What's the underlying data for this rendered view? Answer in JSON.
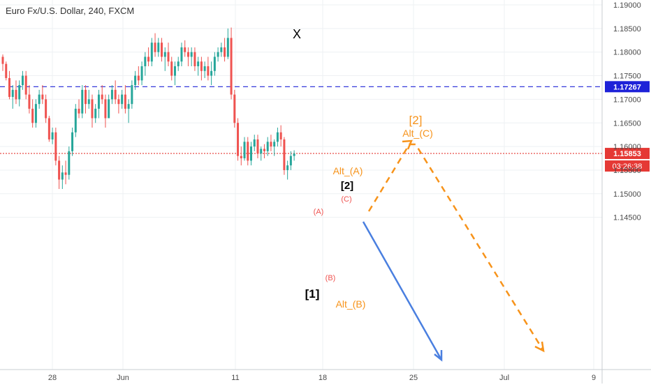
{
  "header": {
    "title": "Euro Fx/U.S. Dollar, 240, FXCM"
  },
  "colors": {
    "up": "#26a69a",
    "down": "#ef5350",
    "orange": "#f7931a",
    "blue_level": "#1e22d8",
    "red_dotted": "#e53935",
    "arrow_blue": "#4a7fe0",
    "grid": "#eef0f3",
    "axis_text": "#4a4a4a"
  },
  "chart_data": {
    "type": "candlestick",
    "symbol": "Euro Fx/U.S. Dollar",
    "interval": "240",
    "source": "FXCM",
    "ylim": [
      1.144,
      1.191
    ],
    "y_ticks": [
      "1.14500",
      "1.15000",
      "1.15500",
      "1.16000",
      "1.16500",
      "1.17000",
      "1.17500",
      "1.18000",
      "1.18500",
      "1.19000"
    ],
    "x_ticks": [
      "28",
      "Jun",
      "11",
      "18",
      "25",
      "Jul",
      "9"
    ],
    "grid": true,
    "horizontal_levels": [
      {
        "price": 1.17267,
        "label": "1.17267",
        "style": "dashed",
        "color": "#1e22d8"
      },
      {
        "price": 1.15853,
        "label": "1.15853",
        "style": "dotted",
        "color": "#e53935"
      }
    ],
    "countdown": "03:26:38",
    "annotations": [
      {
        "text": "X",
        "color": "#000000"
      },
      {
        "text": "[1]",
        "color": "#000000"
      },
      {
        "text": "[2]",
        "color": "#000000"
      },
      {
        "text": "(A)",
        "color": "#ef5350"
      },
      {
        "text": "(B)",
        "color": "#ef5350"
      },
      {
        "text": "(C)",
        "color": "#ef5350"
      },
      {
        "text": "Alt_(A)",
        "color": "#f7931a"
      },
      {
        "text": "Alt_(B)",
        "color": "#f7931a"
      },
      {
        "text": "[2]",
        "color": "#f7931a"
      },
      {
        "text": "Alt_(C)",
        "color": "#f7931a"
      }
    ],
    "candles": [
      [
        1.179,
        1.1795,
        1.176,
        1.1775
      ],
      [
        1.1775,
        1.178,
        1.174,
        1.1745
      ],
      [
        1.1745,
        1.176,
        1.17,
        1.1705
      ],
      [
        1.1705,
        1.173,
        1.168,
        1.172
      ],
      [
        1.172,
        1.174,
        1.169,
        1.17
      ],
      [
        1.17,
        1.174,
        1.1685,
        1.173
      ],
      [
        1.173,
        1.176,
        1.172,
        1.175
      ],
      [
        1.175,
        1.176,
        1.17,
        1.171
      ],
      [
        1.171,
        1.173,
        1.167,
        1.168
      ],
      [
        1.168,
        1.17,
        1.164,
        1.165
      ],
      [
        1.165,
        1.17,
        1.164,
        1.169
      ],
      [
        1.169,
        1.172,
        1.168,
        1.171
      ],
      [
        1.171,
        1.173,
        1.169,
        1.17
      ],
      [
        1.17,
        1.171,
        1.165,
        1.166
      ],
      [
        1.166,
        1.1665,
        1.161,
        1.1615
      ],
      [
        1.1615,
        1.164,
        1.1605,
        1.163
      ],
      [
        1.163,
        1.164,
        1.156,
        1.157
      ],
      [
        1.157,
        1.158,
        1.151,
        1.153
      ],
      [
        1.153,
        1.156,
        1.151,
        1.1545
      ],
      [
        1.1545,
        1.157,
        1.152,
        1.154
      ],
      [
        1.154,
        1.16,
        1.153,
        1.159
      ],
      [
        1.159,
        1.164,
        1.158,
        1.163
      ],
      [
        1.163,
        1.169,
        1.162,
        1.168
      ],
      [
        1.168,
        1.17,
        1.166,
        1.167
      ],
      [
        1.167,
        1.173,
        1.166,
        1.172
      ],
      [
        1.172,
        1.173,
        1.167,
        1.169
      ],
      [
        1.169,
        1.172,
        1.168,
        1.17
      ],
      [
        1.17,
        1.171,
        1.164,
        1.166
      ],
      [
        1.166,
        1.169,
        1.165,
        1.168
      ],
      [
        1.168,
        1.172,
        1.166,
        1.171
      ],
      [
        1.171,
        1.173,
        1.169,
        1.17
      ],
      [
        1.17,
        1.171,
        1.164,
        1.166
      ],
      [
        1.166,
        1.171,
        1.166,
        1.17
      ],
      [
        1.17,
        1.173,
        1.169,
        1.172
      ],
      [
        1.172,
        1.174,
        1.169,
        1.17
      ],
      [
        1.17,
        1.171,
        1.167,
        1.169
      ],
      [
        1.169,
        1.172,
        1.168,
        1.171
      ],
      [
        1.171,
        1.173,
        1.167,
        1.168
      ],
      [
        1.168,
        1.17,
        1.165,
        1.169
      ],
      [
        1.169,
        1.174,
        1.168,
        1.173
      ],
      [
        1.173,
        1.176,
        1.172,
        1.175
      ],
      [
        1.175,
        1.177,
        1.173,
        1.174
      ],
      [
        1.174,
        1.178,
        1.173,
        1.177
      ],
      [
        1.177,
        1.18,
        1.175,
        1.179
      ],
      [
        1.179,
        1.181,
        1.177,
        1.178
      ],
      [
        1.178,
        1.183,
        1.177,
        1.182
      ],
      [
        1.182,
        1.184,
        1.179,
        1.18
      ],
      [
        1.18,
        1.183,
        1.179,
        1.182
      ],
      [
        1.182,
        1.183,
        1.178,
        1.179
      ],
      [
        1.179,
        1.181,
        1.176,
        1.18
      ],
      [
        1.18,
        1.182,
        1.177,
        1.178
      ],
      [
        1.178,
        1.179,
        1.174,
        1.175
      ],
      [
        1.175,
        1.178,
        1.173,
        1.177
      ],
      [
        1.177,
        1.179,
        1.176,
        1.178
      ],
      [
        1.178,
        1.182,
        1.177,
        1.181
      ],
      [
        1.181,
        1.1825,
        1.179,
        1.18
      ],
      [
        1.18,
        1.181,
        1.177,
        1.179
      ],
      [
        1.179,
        1.181,
        1.177,
        1.18
      ],
      [
        1.18,
        1.181,
        1.176,
        1.177
      ],
      [
        1.177,
        1.179,
        1.175,
        1.178
      ],
      [
        1.178,
        1.179,
        1.174,
        1.176
      ],
      [
        1.176,
        1.178,
        1.1745,
        1.177
      ],
      [
        1.177,
        1.179,
        1.174,
        1.175
      ],
      [
        1.175,
        1.178,
        1.173,
        1.176
      ],
      [
        1.176,
        1.18,
        1.175,
        1.179
      ],
      [
        1.179,
        1.181,
        1.178,
        1.18
      ],
      [
        1.18,
        1.182,
        1.179,
        1.181
      ],
      [
        1.181,
        1.183,
        1.178,
        1.179
      ],
      [
        1.179,
        1.185,
        1.1785,
        1.183
      ],
      [
        1.183,
        1.1852,
        1.17,
        1.171
      ],
      [
        1.171,
        1.172,
        1.164,
        1.165
      ],
      [
        1.165,
        1.166,
        1.157,
        1.158
      ],
      [
        1.158,
        1.16,
        1.156,
        1.1575
      ],
      [
        1.1575,
        1.162,
        1.157,
        1.161
      ],
      [
        1.161,
        1.162,
        1.156,
        1.157
      ],
      [
        1.157,
        1.161,
        1.156,
        1.16
      ],
      [
        1.16,
        1.1625,
        1.159,
        1.1615
      ],
      [
        1.1615,
        1.1625,
        1.1575,
        1.1585
      ],
      [
        1.1585,
        1.16,
        1.157,
        1.1595
      ],
      [
        1.1595,
        1.1605,
        1.1575,
        1.159
      ],
      [
        1.159,
        1.162,
        1.158,
        1.161
      ],
      [
        1.161,
        1.1625,
        1.159,
        1.16
      ],
      [
        1.16,
        1.1615,
        1.158,
        1.161
      ],
      [
        1.161,
        1.164,
        1.16,
        1.163
      ],
      [
        1.163,
        1.1645,
        1.16,
        1.1615
      ],
      [
        1.1615,
        1.162,
        1.154,
        1.155
      ],
      [
        1.155,
        1.157,
        1.153,
        1.156
      ],
      [
        1.156,
        1.159,
        1.155,
        1.158
      ],
      [
        1.158,
        1.1592,
        1.157,
        1.1585
      ]
    ]
  }
}
